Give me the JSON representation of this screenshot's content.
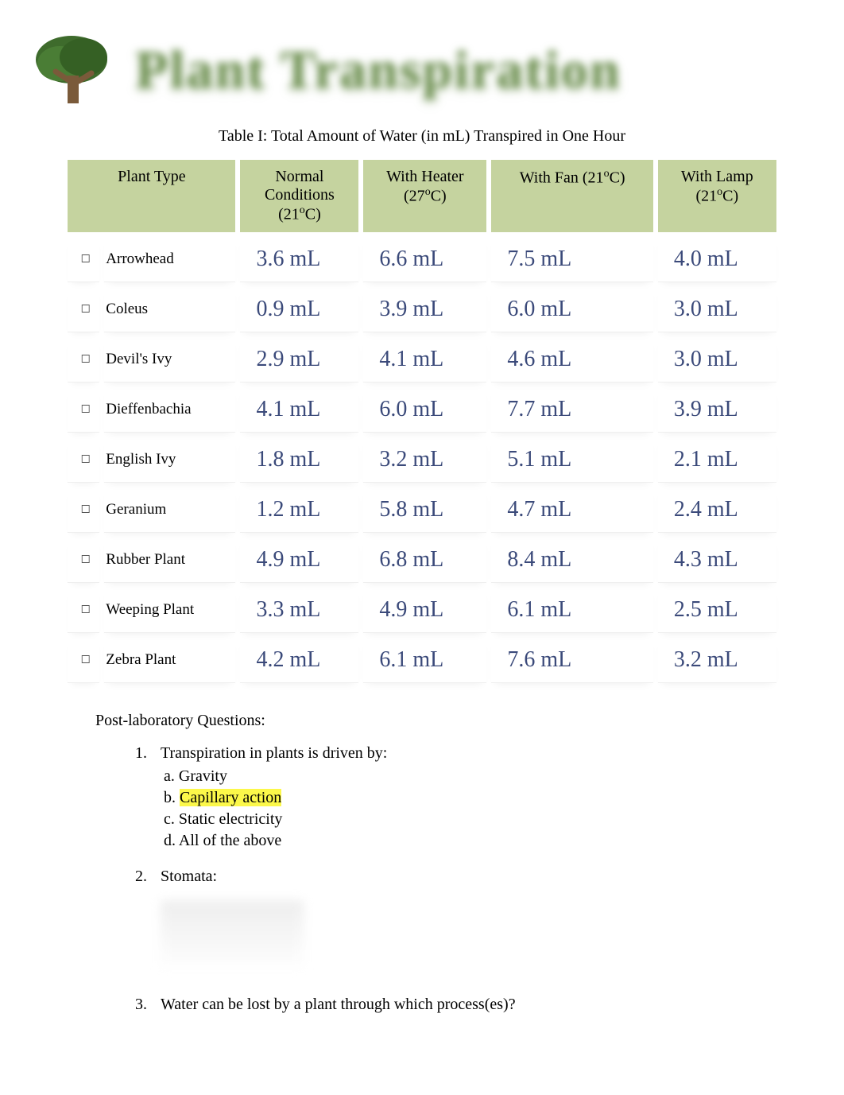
{
  "header": {
    "title": "Plant Transpiration",
    "tree_color": "#3e6b2c",
    "tree_trunk_color": "#7a5a3a"
  },
  "table": {
    "caption": "Table I:  Total Amount of Water (in mL) Transpired in One Hour",
    "header_bg": "#c5d39f",
    "columns": [
      {
        "label": "Plant Type"
      },
      {
        "label_html": "Normal Conditions (21°C)",
        "line1": "Normal",
        "line2": "Conditions",
        "line3": "(21",
        "sup": "o",
        "after": "C)"
      },
      {
        "label_html": "With Heater (27°C)",
        "line1": "With Heater",
        "line2": "(27",
        "sup": "o",
        "after": "C)"
      },
      {
        "label_html": "With Fan (21°C)",
        "line1": "With Fan (21",
        "sup": "o",
        "after": "C)"
      },
      {
        "label_html": "With Lamp (21°C)",
        "line1": "With Lamp",
        "line2": "(21",
        "sup": "o",
        "after": "C)"
      }
    ],
    "value_color": "#3b4a7a",
    "value_fontsize": 28,
    "name_fontsize": 19,
    "rows": [
      {
        "plant": "Arrowhead",
        "values": [
          "3.6 mL",
          "6.6 mL",
          "7.5 mL",
          "4.0 mL"
        ]
      },
      {
        "plant": "Coleus",
        "values": [
          "0.9 mL",
          "3.9 mL",
          "6.0 mL",
          "3.0 mL"
        ]
      },
      {
        "plant": "Devil's Ivy",
        "values": [
          "2.9 mL",
          "4.1 mL",
          "4.6 mL",
          "3.0 mL"
        ]
      },
      {
        "plant": "Dieffenbachia",
        "values": [
          "4.1 mL",
          "6.0 mL",
          "7.7 mL",
          "3.9 mL"
        ]
      },
      {
        "plant": "English Ivy",
        "values": [
          "1.8 mL",
          "3.2 mL",
          "5.1 mL",
          "2.1 mL"
        ]
      },
      {
        "plant": "Geranium",
        "values": [
          "1.2 mL",
          "5.8 mL",
          "4.7 mL",
          "2.4 mL"
        ]
      },
      {
        "plant": "Rubber Plant",
        "values": [
          "4.9 mL",
          "6.8 mL",
          "8.4 mL",
          "4.3 mL"
        ]
      },
      {
        "plant": "Weeping Plant",
        "values": [
          "3.3 mL",
          "4.9 mL",
          "6.1 mL",
          "2.5 mL"
        ]
      },
      {
        "plant": "Zebra Plant",
        "values": [
          "4.2 mL",
          "6.1 mL",
          "7.6 mL",
          "3.2 mL"
        ]
      }
    ],
    "bullet_glyph": "🞏"
  },
  "questions": {
    "heading": "Post-laboratory Questions:",
    "items": [
      {
        "text": "Transpiration in plants is driven by:",
        "options": [
          {
            "letter": "a.",
            "text": "Gravity",
            "highlight": false
          },
          {
            "letter": "b.",
            "text": "Capillary action",
            "highlight": true
          },
          {
            "letter": "c.",
            "text": "Static electricity",
            "highlight": false
          },
          {
            "letter": "d.",
            "text": "All of the above",
            "highlight": false
          }
        ]
      },
      {
        "text": " Stomata:",
        "options": []
      },
      {
        "text": "Water can be lost by a plant through which process(es)?",
        "options": []
      }
    ],
    "highlight_color": "#fcf84a"
  }
}
